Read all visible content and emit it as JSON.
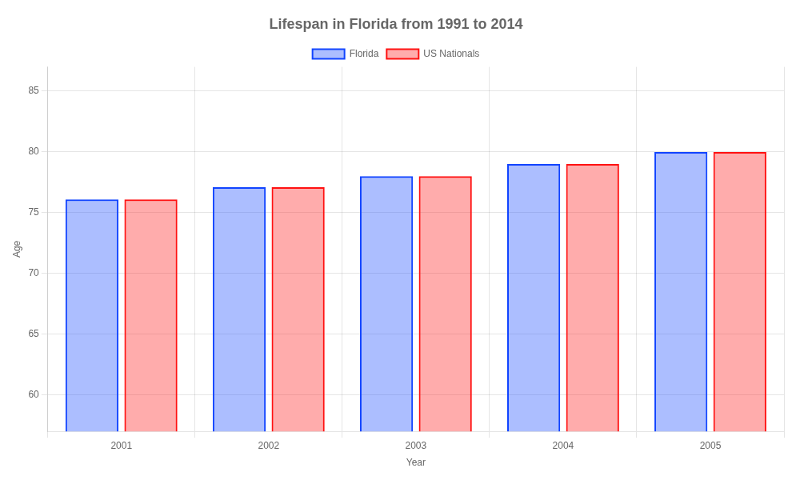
{
  "chart_data": {
    "type": "bar",
    "title": "Lifespan in Florida from 1991 to 2014",
    "x_label": "Year",
    "y_label": "Age",
    "categories": [
      "2001",
      "2002",
      "2003",
      "2004",
      "2005"
    ],
    "series": [
      {
        "name": "Florida",
        "color": "#1144ff",
        "values": [
          76.1,
          77.1,
          78.0,
          79.0,
          80.0
        ]
      },
      {
        "name": "US Nationals",
        "color": "#ff1111",
        "values": [
          76.1,
          77.1,
          78.0,
          79.0,
          80.0
        ]
      }
    ],
    "ylim": [
      57,
      87
    ],
    "yticks": [
      60,
      65,
      70,
      75,
      80,
      85
    ],
    "grid": true,
    "legend": "top"
  }
}
